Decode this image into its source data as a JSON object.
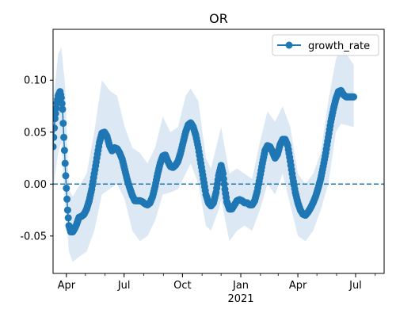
{
  "colors": {
    "line": "#1f77b4",
    "band": "#dce9f5",
    "zero_line": "#1f77b4"
  },
  "chart_data": {
    "type": "line",
    "title": "OR",
    "xlabel": "",
    "ylabel": "",
    "x_ticks": [
      {
        "date": "2020-04-01",
        "label": "Apr"
      },
      {
        "date": "2020-07-01",
        "label": "Jul"
      },
      {
        "date": "2020-10-01",
        "label": "Oct"
      },
      {
        "date": "2021-01-01",
        "label": "Jan",
        "sublabel": "2021"
      },
      {
        "date": "2021-04-01",
        "label": "Apr"
      },
      {
        "date": "2021-07-01",
        "label": "Jul"
      }
    ],
    "y_ticks": [
      "0.10",
      "0.05",
      "0.00",
      "-0.05"
    ],
    "xlim": [
      "2020-03-11",
      "2021-08-15"
    ],
    "ylim": [
      -0.086,
      0.149
    ],
    "reference_line": {
      "y": 0.0,
      "style": "dashed"
    },
    "legend": {
      "position": "top-right",
      "entries": [
        "growth_rate"
      ]
    },
    "series": [
      {
        "name": "growth_rate",
        "marker": "circle",
        "points": [
          [
            "2020-03-11",
            0.036
          ],
          [
            "2020-03-14",
            0.063
          ],
          [
            "2020-03-17",
            0.078
          ],
          [
            "2020-03-19",
            0.085
          ],
          [
            "2020-03-22",
            0.089
          ],
          [
            "2020-03-24",
            0.083
          ],
          [
            "2020-03-26",
            0.072
          ],
          [
            "2020-03-28",
            0.045
          ],
          [
            "2020-03-30",
            0.02
          ],
          [
            "2020-04-01",
            -0.004
          ],
          [
            "2020-04-03",
            -0.025
          ],
          [
            "2020-04-05",
            -0.04
          ],
          [
            "2020-04-08",
            -0.046
          ],
          [
            "2020-04-11",
            -0.046
          ],
          [
            "2020-04-14",
            -0.043
          ],
          [
            "2020-04-17",
            -0.039
          ],
          [
            "2020-04-21",
            -0.032
          ],
          [
            "2020-04-25",
            -0.031
          ],
          [
            "2020-04-29",
            -0.029
          ],
          [
            "2020-05-03",
            -0.024
          ],
          [
            "2020-05-07",
            -0.016
          ],
          [
            "2020-05-11",
            -0.005
          ],
          [
            "2020-05-15",
            0.01
          ],
          [
            "2020-05-19",
            0.025
          ],
          [
            "2020-05-23",
            0.04
          ],
          [
            "2020-05-27",
            0.049
          ],
          [
            "2020-05-31",
            0.05
          ],
          [
            "2020-06-04",
            0.046
          ],
          [
            "2020-06-08",
            0.037
          ],
          [
            "2020-06-12",
            0.032
          ],
          [
            "2020-06-16",
            0.035
          ],
          [
            "2020-06-20",
            0.034
          ],
          [
            "2020-06-24",
            0.03
          ],
          [
            "2020-06-28",
            0.024
          ],
          [
            "2020-07-02",
            0.014
          ],
          [
            "2020-07-06",
            0.004
          ],
          [
            "2020-07-10",
            -0.004
          ],
          [
            "2020-07-14",
            -0.011
          ],
          [
            "2020-07-18",
            -0.016
          ],
          [
            "2020-07-22",
            -0.016
          ],
          [
            "2020-07-26",
            -0.016
          ],
          [
            "2020-07-30",
            -0.017
          ],
          [
            "2020-08-03",
            -0.019
          ],
          [
            "2020-08-07",
            -0.02
          ],
          [
            "2020-08-11",
            -0.018
          ],
          [
            "2020-08-15",
            -0.012
          ],
          [
            "2020-08-19",
            -0.002
          ],
          [
            "2020-08-23",
            0.01
          ],
          [
            "2020-08-27",
            0.02
          ],
          [
            "2020-08-31",
            0.027
          ],
          [
            "2020-09-04",
            0.028
          ],
          [
            "2020-09-08",
            0.022
          ],
          [
            "2020-09-12",
            0.017
          ],
          [
            "2020-09-16",
            0.016
          ],
          [
            "2020-09-20",
            0.018
          ],
          [
            "2020-09-24",
            0.022
          ],
          [
            "2020-09-28",
            0.03
          ],
          [
            "2020-10-02",
            0.04
          ],
          [
            "2020-10-06",
            0.05
          ],
          [
            "2020-10-10",
            0.057
          ],
          [
            "2020-10-14",
            0.059
          ],
          [
            "2020-10-18",
            0.055
          ],
          [
            "2020-10-22",
            0.047
          ],
          [
            "2020-10-26",
            0.035
          ],
          [
            "2020-10-30",
            0.02
          ],
          [
            "2020-11-03",
            0.005
          ],
          [
            "2020-11-07",
            -0.01
          ],
          [
            "2020-11-11",
            -0.018
          ],
          [
            "2020-11-15",
            -0.021
          ],
          [
            "2020-11-19",
            -0.018
          ],
          [
            "2020-11-23",
            -0.008
          ],
          [
            "2020-11-27",
            0.008
          ],
          [
            "2020-12-01",
            0.018
          ],
          [
            "2020-12-04",
            0.01
          ],
          [
            "2020-12-07",
            -0.005
          ],
          [
            "2020-12-10",
            -0.017
          ],
          [
            "2020-12-14",
            -0.024
          ],
          [
            "2020-12-18",
            -0.024
          ],
          [
            "2020-12-22",
            -0.02
          ],
          [
            "2020-12-26",
            -0.016
          ],
          [
            "2020-12-30",
            -0.015
          ],
          [
            "2021-01-03",
            -0.016
          ],
          [
            "2021-01-07",
            -0.018
          ],
          [
            "2021-01-11",
            -0.018
          ],
          [
            "2021-01-15",
            -0.02
          ],
          [
            "2021-01-19",
            -0.02
          ],
          [
            "2021-01-23",
            -0.016
          ],
          [
            "2021-01-27",
            -0.007
          ],
          [
            "2021-01-31",
            0.006
          ],
          [
            "2021-02-04",
            0.02
          ],
          [
            "2021-02-08",
            0.032
          ],
          [
            "2021-02-12",
            0.037
          ],
          [
            "2021-02-16",
            0.036
          ],
          [
            "2021-02-20",
            0.031
          ],
          [
            "2021-02-24",
            0.025
          ],
          [
            "2021-02-28",
            0.029
          ],
          [
            "2021-03-04",
            0.038
          ],
          [
            "2021-03-08",
            0.043
          ],
          [
            "2021-03-12",
            0.043
          ],
          [
            "2021-03-16",
            0.037
          ],
          [
            "2021-03-20",
            0.022
          ],
          [
            "2021-03-24",
            0.006
          ],
          [
            "2021-03-28",
            -0.008
          ],
          [
            "2021-04-01",
            -0.018
          ],
          [
            "2021-04-05",
            -0.025
          ],
          [
            "2021-04-09",
            -0.029
          ],
          [
            "2021-04-13",
            -0.03
          ],
          [
            "2021-04-17",
            -0.027
          ],
          [
            "2021-04-21",
            -0.023
          ],
          [
            "2021-04-25",
            -0.018
          ],
          [
            "2021-04-29",
            -0.012
          ],
          [
            "2021-05-03",
            -0.004
          ],
          [
            "2021-05-07",
            0.005
          ],
          [
            "2021-05-11",
            0.017
          ],
          [
            "2021-05-15",
            0.03
          ],
          [
            "2021-05-19",
            0.045
          ],
          [
            "2021-05-23",
            0.06
          ],
          [
            "2021-05-27",
            0.072
          ],
          [
            "2021-05-31",
            0.082
          ],
          [
            "2021-06-04",
            0.089
          ],
          [
            "2021-06-08",
            0.09
          ],
          [
            "2021-06-12",
            0.086
          ],
          [
            "2021-06-16",
            0.084
          ],
          [
            "2021-06-20",
            0.084
          ],
          [
            "2021-06-24",
            0.084
          ],
          [
            "2021-06-28",
            0.084
          ]
        ]
      }
    ],
    "confidence_band": [
      [
        "2020-03-11",
        -0.005,
        0.078
      ],
      [
        "2020-03-19",
        0.03,
        0.125
      ],
      [
        "2020-03-24",
        0.04,
        0.132
      ],
      [
        "2020-03-30",
        -0.02,
        0.095
      ],
      [
        "2020-04-05",
        -0.065,
        -0.005
      ],
      [
        "2020-04-11",
        -0.075,
        -0.012
      ],
      [
        "2020-04-21",
        -0.07,
        -0.002
      ],
      [
        "2020-05-03",
        -0.065,
        0.01
      ],
      [
        "2020-05-15",
        -0.045,
        0.05
      ],
      [
        "2020-05-27",
        -0.01,
        0.1
      ],
      [
        "2020-06-08",
        -0.005,
        0.09
      ],
      [
        "2020-06-20",
        0.0,
        0.085
      ],
      [
        "2020-07-02",
        -0.015,
        0.055
      ],
      [
        "2020-07-14",
        -0.045,
        0.035
      ],
      [
        "2020-07-26",
        -0.055,
        0.03
      ],
      [
        "2020-08-07",
        -0.05,
        0.02
      ],
      [
        "2020-08-19",
        -0.035,
        0.035
      ],
      [
        "2020-08-31",
        -0.01,
        0.065
      ],
      [
        "2020-09-12",
        -0.008,
        0.05
      ],
      [
        "2020-09-24",
        -0.005,
        0.055
      ],
      [
        "2020-10-06",
        0.01,
        0.085
      ],
      [
        "2020-10-14",
        0.02,
        0.092
      ],
      [
        "2020-10-26",
        0.0,
        0.08
      ],
      [
        "2020-11-07",
        -0.04,
        0.025
      ],
      [
        "2020-11-15",
        -0.045,
        0.015
      ],
      [
        "2020-11-27",
        -0.025,
        0.045
      ],
      [
        "2020-12-01",
        -0.015,
        0.055
      ],
      [
        "2020-12-14",
        -0.055,
        0.01
      ],
      [
        "2020-12-26",
        -0.045,
        0.015
      ],
      [
        "2021-01-07",
        -0.04,
        0.01
      ],
      [
        "2021-01-19",
        -0.045,
        0.005
      ],
      [
        "2021-01-31",
        -0.025,
        0.04
      ],
      [
        "2021-02-12",
        0.0,
        0.07
      ],
      [
        "2021-02-24",
        -0.01,
        0.06
      ],
      [
        "2021-03-08",
        0.01,
        0.075
      ],
      [
        "2021-03-20",
        -0.02,
        0.055
      ],
      [
        "2021-04-01",
        -0.05,
        0.01
      ],
      [
        "2021-04-13",
        -0.055,
        0.0
      ],
      [
        "2021-04-25",
        -0.045,
        0.01
      ],
      [
        "2021-05-07",
        -0.025,
        0.03
      ],
      [
        "2021-05-19",
        0.0,
        0.08
      ],
      [
        "2021-05-31",
        0.05,
        0.12
      ],
      [
        "2021-06-08",
        0.058,
        0.133
      ],
      [
        "2021-06-28",
        0.055,
        0.115
      ]
    ]
  }
}
